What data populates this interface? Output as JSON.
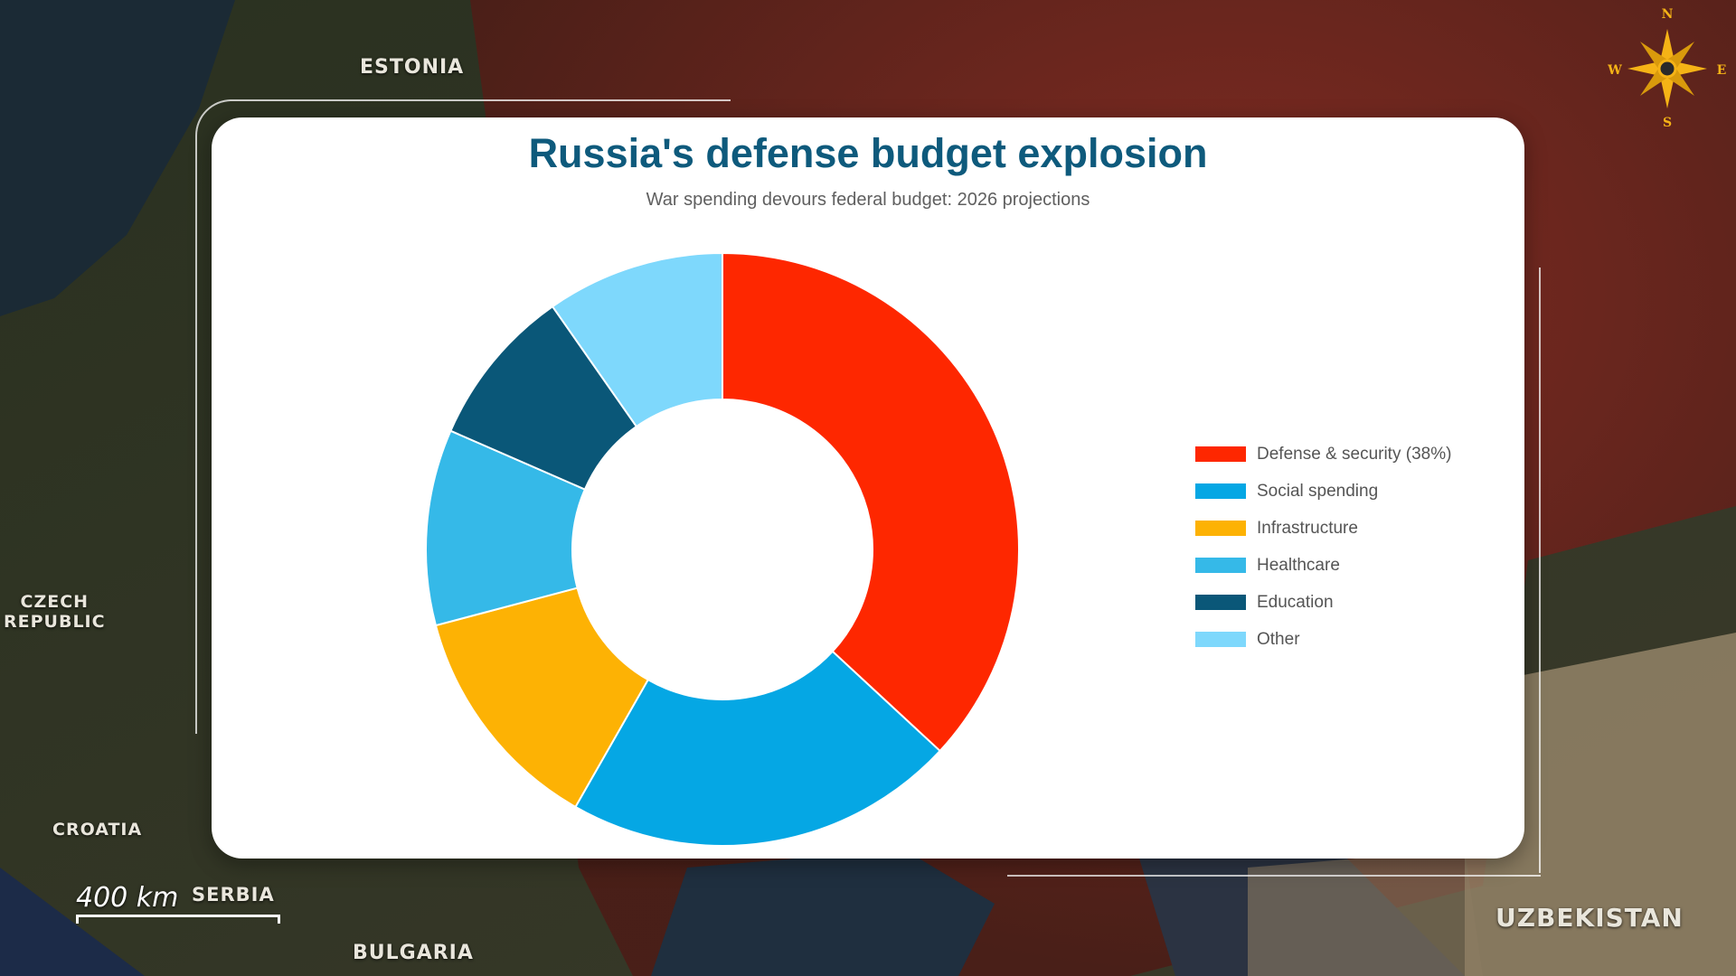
{
  "chart_data": {
    "type": "pie",
    "title": "Russia's defense budget explosion",
    "subtitle": "War spending devours federal budget: 2026 projections",
    "legend_position": "right",
    "categories": [
      "Defense & security (38%)",
      "Social spending",
      "Infrastructure",
      "Healthcare",
      "Education",
      "Other"
    ],
    "values": [
      38,
      22,
      13,
      11,
      9,
      10
    ],
    "colors": [
      "#fe2700",
      "#05a7e4",
      "#fdb204",
      "#35b9e8",
      "#0a5778",
      "#7ed8fc"
    ]
  },
  "map": {
    "labels": {
      "estonia": "ESTONIA",
      "czech": "CZECH\nREPUBLIC",
      "croatia": "CROATIA",
      "serbia": "SERBIA",
      "bulgaria": "BULGARIA",
      "uzbekistan": "UZBEKISTAN"
    },
    "scale": "400 km",
    "compass": {
      "n": "N",
      "s": "S",
      "e": "E",
      "w": "W"
    }
  }
}
